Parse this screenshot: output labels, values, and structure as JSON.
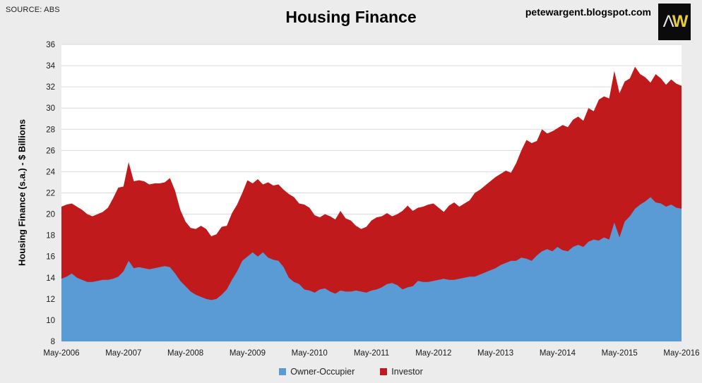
{
  "header": {
    "source": "SOURCE: ABS",
    "title": "Housing Finance",
    "watermark": "petewargent.blogspot.com",
    "logo": {
      "part1": "Λ",
      "part2": "W"
    }
  },
  "colors": {
    "background": "#ECECEC",
    "plot_background": "#FFFFFF",
    "gridline": "#D9D9D9",
    "owner_occupier": "#5B9BD5",
    "investor": "#C01A1C",
    "tick_text": "#1a1a1a",
    "logo_background": "#0b0b0b",
    "logo_lambda": "#e8e8e8",
    "logo_w": "#e3cd3c"
  },
  "chart_data": {
    "type": "area",
    "stacked": true,
    "title": "Housing Finance",
    "y_axis_title": "Housing Finance (s.a.) - $ Billions",
    "xlabel": "",
    "ylabel": "Housing Finance (s.a.) - $ Billions",
    "ylim": [
      8,
      36
    ],
    "y_ticks": [
      8,
      10,
      12,
      14,
      16,
      18,
      20,
      22,
      24,
      26,
      28,
      30,
      32,
      34,
      36
    ],
    "grid": "horizontal",
    "legend_position": "bottom",
    "frequency": "monthly",
    "x_start": "May-2006",
    "x_end": "May-2016",
    "x_tick_every": 12,
    "x_tick_labels": [
      "May-2006",
      "May-2007",
      "May-2008",
      "May-2009",
      "May-2010",
      "May-2011",
      "May-2012",
      "May-2013",
      "May-2014",
      "May-2015",
      "May-2016"
    ],
    "series": [
      {
        "name": "Owner-Occupier",
        "color": "#5B9BD5",
        "values": [
          13.9,
          14.1,
          14.4,
          14.0,
          13.8,
          13.6,
          13.6,
          13.7,
          13.8,
          13.8,
          13.9,
          14.1,
          14.6,
          15.6,
          14.9,
          15.0,
          14.9,
          14.8,
          14.9,
          15.0,
          15.1,
          15.0,
          14.4,
          13.7,
          13.2,
          12.7,
          12.4,
          12.2,
          12.0,
          11.9,
          12.0,
          12.4,
          12.9,
          13.8,
          14.6,
          15.6,
          16.0,
          16.4,
          16.0,
          16.4,
          15.9,
          15.7,
          15.6,
          15.0,
          14.0,
          13.6,
          13.4,
          12.9,
          12.8,
          12.6,
          12.9,
          13.0,
          12.7,
          12.5,
          12.8,
          12.7,
          12.7,
          12.8,
          12.7,
          12.6,
          12.8,
          12.9,
          13.1,
          13.4,
          13.5,
          13.3,
          12.9,
          13.1,
          13.2,
          13.7,
          13.6,
          13.6,
          13.7,
          13.8,
          13.9,
          13.8,
          13.8,
          13.9,
          14.0,
          14.1,
          14.1,
          14.3,
          14.5,
          14.7,
          14.9,
          15.2,
          15.4,
          15.6,
          15.6,
          15.9,
          15.8,
          15.6,
          16.1,
          16.5,
          16.7,
          16.5,
          16.9,
          16.6,
          16.5,
          16.9,
          17.1,
          16.9,
          17.4,
          17.6,
          17.5,
          17.8,
          17.6,
          19.2,
          17.8,
          19.3,
          19.8,
          20.5,
          20.9,
          21.2,
          21.6,
          21.1,
          21.0,
          20.7,
          20.9,
          20.6,
          20.5
        ]
      },
      {
        "name": "Investor",
        "color": "#C01A1C",
        "values": [
          6.8,
          6.8,
          6.6,
          6.7,
          6.6,
          6.4,
          6.2,
          6.3,
          6.4,
          6.8,
          7.6,
          8.4,
          8.0,
          9.3,
          8.2,
          8.2,
          8.2,
          8.0,
          8.0,
          7.9,
          7.9,
          8.4,
          7.8,
          6.7,
          6.1,
          6.0,
          6.2,
          6.7,
          6.6,
          6.0,
          6.1,
          6.4,
          6.0,
          6.3,
          6.3,
          6.4,
          7.2,
          6.5,
          7.3,
          6.4,
          7.1,
          7.0,
          7.2,
          7.3,
          7.9,
          8.0,
          7.6,
          8.0,
          7.8,
          7.3,
          6.8,
          7.0,
          7.1,
          7.0,
          7.5,
          6.9,
          6.7,
          6.1,
          5.9,
          6.2,
          6.6,
          6.8,
          6.7,
          6.7,
          6.3,
          6.7,
          7.4,
          7.7,
          7.1,
          6.9,
          7.1,
          7.3,
          7.3,
          6.8,
          6.3,
          7.0,
          7.3,
          6.8,
          7.0,
          7.2,
          7.9,
          8.0,
          8.2,
          8.4,
          8.6,
          8.6,
          8.7,
          8.3,
          9.2,
          10.1,
          11.2,
          11.1,
          10.8,
          11.5,
          10.9,
          11.3,
          11.2,
          11.8,
          11.7,
          12.0,
          12.1,
          11.9,
          12.6,
          12.1,
          13.3,
          13.3,
          13.3,
          14.3,
          13.6,
          13.2,
          13.0,
          13.4,
          12.3,
          11.7,
          10.8,
          12.1,
          11.8,
          11.5,
          11.8,
          11.7,
          11.6
        ]
      }
    ]
  }
}
